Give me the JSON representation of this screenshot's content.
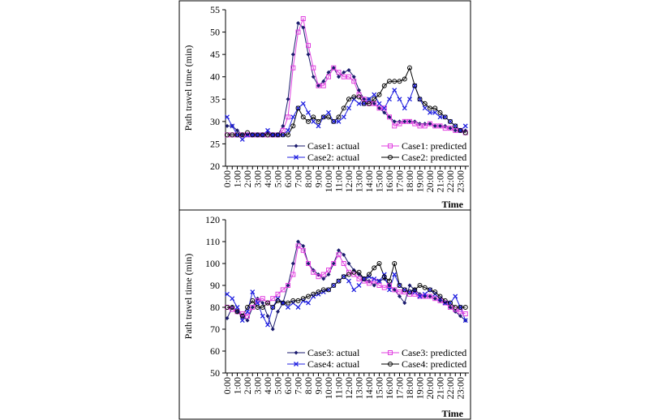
{
  "chart_data": [
    {
      "type": "line",
      "ylabel": "Path travel time (min)",
      "xlabel": "Time",
      "legend": "lower right",
      "categories": [
        "0:00",
        null,
        "1:00",
        null,
        "2:00",
        null,
        "3:00",
        null,
        "4:00",
        null,
        "5:00",
        null,
        "6:00",
        null,
        "7:00",
        null,
        "8:00",
        null,
        "9:00",
        null,
        "10:00",
        null,
        "11:00",
        null,
        "12:00",
        null,
        "13:00",
        null,
        "14:00",
        null,
        "15:00",
        null,
        "16:00",
        null,
        "17:00",
        null,
        "18:00",
        null,
        "19:00",
        null,
        "20:00",
        null,
        "21:00",
        null,
        "22:00",
        null,
        "23:00",
        null
      ],
      "ylim": [
        20,
        55
      ],
      "yticks": [
        20,
        25,
        30,
        35,
        40,
        45,
        50,
        55
      ],
      "series": [
        {
          "name": "Case1: actual",
          "color": "#1a1a6e",
          "marker": "diamond",
          "values": [
            29,
            29,
            28,
            27,
            27,
            27,
            27,
            27,
            27.5,
            27,
            27,
            29,
            35,
            45,
            52,
            51,
            45,
            40,
            38,
            39,
            41,
            42,
            40,
            41,
            41.5,
            40,
            37,
            35,
            35,
            34,
            33,
            32,
            31,
            30,
            30,
            30,
            30,
            30,
            29.5,
            29.5,
            29.5,
            29,
            29,
            29,
            28.5,
            28,
            28,
            28
          ]
        },
        {
          "name": "Case1: predicted",
          "color": "#e040e0",
          "marker": "square",
          "values": [
            27,
            27,
            27,
            27,
            27,
            27,
            27,
            27,
            27,
            27,
            27,
            28,
            31,
            42,
            50,
            53,
            47,
            42,
            38,
            38,
            40,
            42,
            41,
            40,
            40,
            39,
            36,
            35,
            34,
            34,
            33,
            33,
            31,
            29,
            29.5,
            30,
            30,
            29.5,
            29,
            29,
            29.5,
            29,
            29,
            28.5,
            28.5,
            28,
            28,
            27.5
          ]
        },
        {
          "name": "Case2: actual",
          "color": "#2020e0",
          "marker": "x",
          "values": [
            31,
            29,
            27,
            26,
            27,
            27,
            27,
            27,
            28,
            27,
            27,
            27,
            28,
            31,
            33,
            34,
            32,
            30,
            29,
            31,
            32,
            30,
            30,
            31,
            33,
            35,
            34,
            34,
            35,
            36,
            34,
            33,
            35,
            37,
            35,
            33,
            35,
            38,
            35,
            33,
            32,
            32,
            31,
            31,
            30,
            29,
            28,
            29
          ]
        },
        {
          "name": "Case2: predicted",
          "color": "#000000",
          "marker": "circle",
          "values": [
            27,
            27,
            27,
            27,
            27.5,
            27,
            27,
            27,
            27,
            27,
            27,
            27,
            27,
            29,
            33,
            31,
            30,
            31,
            30,
            31,
            31,
            30,
            31,
            33,
            35,
            35.5,
            35.5,
            34,
            34,
            35,
            36,
            38,
            39,
            39,
            39,
            39.5,
            42,
            38,
            35,
            34,
            33,
            33,
            32,
            31,
            30,
            29,
            28,
            27.5
          ]
        }
      ]
    },
    {
      "type": "line",
      "ylabel": "Path travel time (min)",
      "xlabel": "Time",
      "legend": "lower right",
      "categories": [
        "0:00",
        null,
        "1:00",
        null,
        "2:00",
        null,
        "3:00",
        null,
        "4:00",
        null,
        "5:00",
        null,
        "6:00",
        null,
        "7:00",
        null,
        "8:00",
        null,
        "9:00",
        null,
        "10:00",
        null,
        "11:00",
        null,
        "12:00",
        null,
        "13:00",
        null,
        "14:00",
        null,
        "15:00",
        null,
        "16:00",
        null,
        "17:00",
        null,
        "18:00",
        null,
        "19:00",
        null,
        "20:00",
        null,
        "21:00",
        null,
        "22:00",
        null,
        "23:00",
        null
      ],
      "ylim": [
        50,
        120
      ],
      "yticks": [
        50,
        60,
        70,
        80,
        90,
        100,
        110,
        120
      ],
      "series": [
        {
          "name": "Case3: actual",
          "color": "#1a1a6e",
          "marker": "diamond",
          "values": [
            75,
            80,
            78,
            76,
            74,
            80,
            84,
            82,
            76,
            70,
            78,
            82,
            90,
            100,
            110,
            108,
            100,
            97,
            95,
            93,
            95,
            100,
            106,
            104,
            100,
            97,
            95,
            93,
            92,
            90,
            92,
            93,
            90,
            88,
            85,
            82,
            90,
            88,
            86,
            85,
            85,
            84,
            83,
            82,
            80,
            78,
            76,
            74
          ]
        },
        {
          "name": "Case3: predicted",
          "color": "#e040e0",
          "marker": "square",
          "values": [
            80,
            79,
            78,
            77,
            76,
            80,
            83,
            84,
            82,
            84,
            86,
            88,
            90,
            95,
            108,
            106,
            100,
            96,
            94,
            95,
            97,
            100,
            104,
            100,
            96,
            95,
            93,
            92,
            91,
            92,
            90,
            89,
            90,
            88,
            87,
            87,
            86,
            86,
            85,
            85,
            85,
            84,
            83,
            82,
            80,
            79,
            78,
            77
          ]
        },
        {
          "name": "Case4: actual",
          "color": "#2020e0",
          "marker": "x",
          "values": [
            86,
            84,
            80,
            74,
            78,
            87,
            82,
            76,
            72,
            80,
            84,
            82,
            80,
            82,
            80,
            83,
            82,
            85,
            86,
            87,
            88,
            90,
            92,
            94,
            92,
            88,
            90,
            93,
            94,
            93,
            92,
            95,
            88,
            95,
            90,
            88,
            87,
            87,
            85,
            86,
            88,
            86,
            84,
            82,
            82,
            85,
            80,
            74
          ]
        },
        {
          "name": "Case4: predicted",
          "color": "#000000",
          "marker": "circle",
          "values": [
            80,
            80,
            78,
            76,
            80,
            83,
            80,
            80,
            82,
            80,
            83,
            82,
            82,
            83,
            83,
            84,
            85,
            86,
            87,
            88,
            88,
            90,
            92,
            94,
            95,
            96,
            96,
            93,
            95,
            98,
            100,
            94,
            92,
            100,
            90,
            88,
            87,
            88,
            90,
            89,
            88,
            87,
            85,
            83,
            82,
            80,
            80,
            80
          ]
        }
      ]
    }
  ]
}
